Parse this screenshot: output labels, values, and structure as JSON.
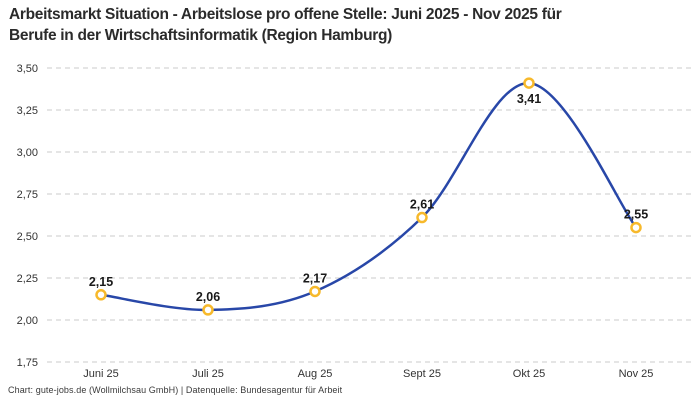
{
  "header": {
    "title_line1": "Arbeitsmarkt Situation - Arbeitslose pro offene Stelle: Juni 2025 - Nov 2025 für",
    "title_line2": "Berufe in der Wirtschaftsinformatik (Region Hamburg)"
  },
  "footer": {
    "credit": "Chart: gute-jobs.de (Wollmilchsau GmbH) | Datenquelle: Bundesagentur für Arbeit"
  },
  "chart_data": {
    "type": "line",
    "title": "Arbeitsmarkt Situation - Arbeitslose pro offene Stelle: Juni 2025 - Nov 2025 für Berufe in der Wirtschaftsinformatik (Region Hamburg)",
    "categories": [
      "Juni 25",
      "Juli 25",
      "Aug 25",
      "Sept 25",
      "Okt 25",
      "Nov 25"
    ],
    "values": [
      2.15,
      2.06,
      2.17,
      2.61,
      3.41,
      2.55
    ],
    "value_labels": [
      "2,15",
      "2,06",
      "2,17",
      "2,61",
      "3,41",
      "2,55"
    ],
    "value_label_positions": [
      "above",
      "above",
      "above",
      "above",
      "below",
      "above"
    ],
    "ylim": [
      1.75,
      3.5
    ],
    "ytick_values": [
      3.5,
      3.25,
      3.0,
      2.75,
      2.5,
      2.25,
      2.0,
      1.75
    ],
    "ytick_labels": [
      "3,50",
      "3,25",
      "3,00",
      "2,75",
      "2,50",
      "2,25",
      "2,00",
      "1,75"
    ],
    "xlabel": "",
    "ylabel": "",
    "legend": "none",
    "grid": "horizontal-dashed",
    "line_style": "smooth",
    "marker_style": "open-circle",
    "colors": {
      "line": "#2847A8",
      "marker_stroke": "#F7B92B",
      "marker_fill": "#FFFFFF",
      "grid": "#CBCBCB",
      "axis_text": "#333333",
      "value_label_text": "#1A1A1A",
      "title_text": "#2B2B2B",
      "background": "#FFFFFF"
    }
  }
}
